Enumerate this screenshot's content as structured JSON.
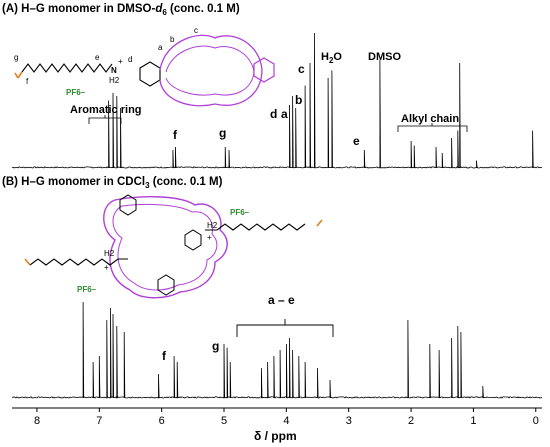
{
  "chart_data": [
    {
      "type": "line",
      "title": "(A) H–G monomer in DMSO-d6 (conc. 0.1 M)",
      "title_parts": {
        "pre": "(A) H–G monomer in DMSO-",
        "solvent": "d",
        "sub": "6",
        "post": " (conc. 0.1 M)"
      },
      "xlim": [
        8.4,
        -0.1
      ],
      "xlabel": "δ / ppm",
      "series": [
        {
          "x": [
            6.85,
            6.78,
            6.72,
            6.66,
            5.82,
            5.78,
            4.98,
            4.92,
            3.95,
            3.9,
            3.85,
            3.7,
            3.62,
            3.55,
            3.33,
            3.27,
            2.5,
            2.75,
            2.0,
            1.95,
            1.6,
            1.5,
            1.35,
            1.25,
            1.22,
            0.95,
            0.05
          ],
          "values": [
            0.45,
            0.5,
            0.48,
            0.4,
            0.12,
            0.14,
            0.14,
            0.12,
            0.42,
            0.48,
            0.4,
            0.55,
            0.7,
            0.9,
            0.6,
            0.65,
            0.72,
            0.12,
            0.18,
            0.15,
            0.14,
            0.1,
            0.2,
            0.25,
            0.7,
            0.05,
            0.25
          ]
        }
      ],
      "peak_labels": [
        "Aromatic ring",
        "f",
        "g",
        "d",
        "a",
        "b",
        "c",
        "H2O",
        "DMSO",
        "e",
        "Alkyl chain"
      ],
      "structure_labels": {
        "g": "g",
        "f": "f",
        "e": "e",
        "d": "d",
        "b": "b",
        "c": "c",
        "a": "a",
        "amine": "N",
        "h2": "H2",
        "plus": "+",
        "counter_ion": "PF6–"
      }
    },
    {
      "type": "line",
      "title": "(B) H–G monomer in CDCl3 (conc. 0.1 M)",
      "title_parts": {
        "pre": "(B) H–G monomer in CDCl",
        "sub": "3",
        "post": " (conc. 0.1 M)"
      },
      "xlim": [
        8.4,
        -0.1
      ],
      "xlabel": "δ / ppm",
      "xticks": [
        8,
        7,
        6,
        5,
        4,
        3,
        2,
        1,
        0
      ],
      "series": [
        {
          "x": [
            7.26,
            7.1,
            7.0,
            6.88,
            6.82,
            6.78,
            6.72,
            6.6,
            6.05,
            5.8,
            5.75,
            5.0,
            4.95,
            4.9,
            4.4,
            4.3,
            4.2,
            4.1,
            4.0,
            3.95,
            3.9,
            3.8,
            3.7,
            3.5,
            3.3,
            2.05,
            1.7,
            1.55,
            1.35,
            1.25,
            1.2,
            0.85
          ],
          "values": [
            0.8,
            0.3,
            0.35,
            0.65,
            0.75,
            0.7,
            0.6,
            0.55,
            0.2,
            0.35,
            0.3,
            0.45,
            0.42,
            0.3,
            0.25,
            0.3,
            0.35,
            0.4,
            0.45,
            0.5,
            0.4,
            0.35,
            0.3,
            0.25,
            0.15,
            0.65,
            0.45,
            0.4,
            0.5,
            0.6,
            0.55,
            0.1
          ]
        }
      ],
      "peak_labels": [
        "f",
        "g",
        "a – e"
      ],
      "structure_labels": {
        "counter_ion_top": "PF6–",
        "counter_ion_bottom": "PF6–",
        "h2_top": "H2",
        "h2_bottom": "H2",
        "plus": "+"
      }
    }
  ]
}
